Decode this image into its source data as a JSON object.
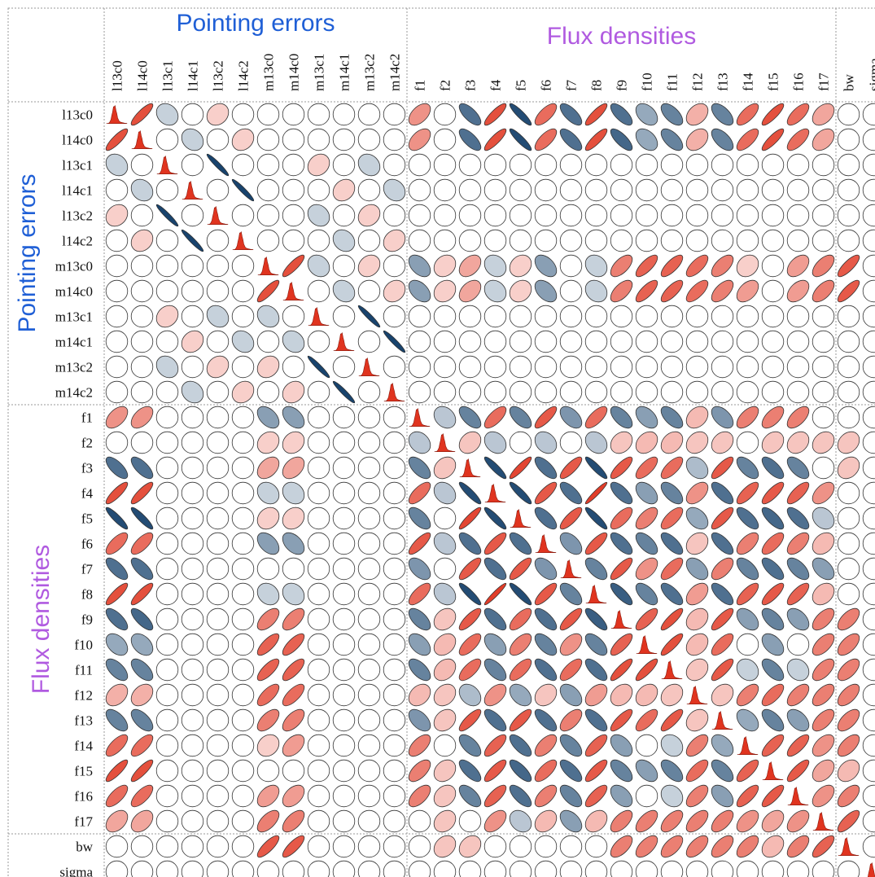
{
  "chart_data": {
    "type": "correlation-ellipse-matrix",
    "groups": [
      {
        "name": "Pointing errors",
        "color": "#1f5fd6",
        "start": 0,
        "count": 12
      },
      {
        "name": "Flux densities",
        "color": "#b05ae0",
        "start": 12,
        "count": 17
      },
      {
        "name": "",
        "color": "#000000",
        "start": 29,
        "count": 2
      }
    ],
    "variables": [
      "l13c0",
      "l14c0",
      "l13c1",
      "l14c1",
      "l13c2",
      "l14c2",
      "m13c0",
      "m14c0",
      "m13c1",
      "m14c1",
      "m13c2",
      "m14c2",
      "f1",
      "f2",
      "f3",
      "f4",
      "f5",
      "f6",
      "f7",
      "f8",
      "f9",
      "f10",
      "f11",
      "f12",
      "f13",
      "f14",
      "f15",
      "f16",
      "f17",
      "bw",
      "sigma"
    ],
    "color_scale": {
      "negative": "#0d3a66",
      "zero": "#ffffff",
      "positive": "#e0341f"
    },
    "diagonal": "marginal histogram",
    "nonzero_correlations": [
      {
        "i": "l13c0",
        "j": "l14c0",
        "r": 0.85
      },
      {
        "i": "l13c0",
        "j": "l13c1",
        "r": -0.2
      },
      {
        "i": "l13c0",
        "j": "l13c2",
        "r": 0.2
      },
      {
        "i": "l14c0",
        "j": "l14c1",
        "r": -0.2
      },
      {
        "i": "l14c0",
        "j": "l14c2",
        "r": 0.2
      },
      {
        "i": "l13c1",
        "j": "l13c2",
        "r": -0.95
      },
      {
        "i": "l13c1",
        "j": "m13c1",
        "r": 0.2
      },
      {
        "i": "l13c1",
        "j": "m13c2",
        "r": -0.2
      },
      {
        "i": "l14c1",
        "j": "l14c2",
        "r": -0.95
      },
      {
        "i": "l14c1",
        "j": "m14c1",
        "r": 0.2
      },
      {
        "i": "l14c1",
        "j": "m14c2",
        "r": -0.2
      },
      {
        "i": "l13c2",
        "j": "m13c1",
        "r": -0.2
      },
      {
        "i": "l13c2",
        "j": "m13c2",
        "r": 0.2
      },
      {
        "i": "l14c2",
        "j": "m14c1",
        "r": -0.2
      },
      {
        "i": "l14c2",
        "j": "m14c2",
        "r": 0.2
      },
      {
        "i": "m13c0",
        "j": "m14c0",
        "r": 0.85
      },
      {
        "i": "m13c0",
        "j": "m13c1",
        "r": -0.2
      },
      {
        "i": "m13c0",
        "j": "m13c2",
        "r": 0.2
      },
      {
        "i": "m14c0",
        "j": "m14c1",
        "r": -0.2
      },
      {
        "i": "m14c0",
        "j": "m14c2",
        "r": 0.2
      },
      {
        "i": "m13c1",
        "j": "m13c2",
        "r": -0.95
      },
      {
        "i": "m14c1",
        "j": "m14c2",
        "r": -0.95
      },
      {
        "i": "l13c0",
        "j": "f1",
        "r": 0.5
      },
      {
        "i": "l14c0",
        "j": "f1",
        "r": 0.5
      },
      {
        "i": "l13c0",
        "j": "f3",
        "r": -0.7
      },
      {
        "i": "l14c0",
        "j": "f3",
        "r": -0.7
      },
      {
        "i": "l13c0",
        "j": "f4",
        "r": 0.85
      },
      {
        "i": "l14c0",
        "j": "f4",
        "r": 0.85
      },
      {
        "i": "l13c0",
        "j": "f5",
        "r": -0.9
      },
      {
        "i": "l14c0",
        "j": "f5",
        "r": -0.9
      },
      {
        "i": "l13c0",
        "j": "f6",
        "r": 0.7
      },
      {
        "i": "l14c0",
        "j": "f6",
        "r": 0.7
      },
      {
        "i": "l13c0",
        "j": "f7",
        "r": -0.7
      },
      {
        "i": "l14c0",
        "j": "f7",
        "r": -0.7
      },
      {
        "i": "l13c0",
        "j": "f8",
        "r": 0.85
      },
      {
        "i": "l14c0",
        "j": "f8",
        "r": 0.85
      },
      {
        "i": "l13c0",
        "j": "f9",
        "r": -0.7
      },
      {
        "i": "l14c0",
        "j": "f9",
        "r": -0.75
      },
      {
        "i": "l13c0",
        "j": "f10",
        "r": -0.4
      },
      {
        "i": "l14c0",
        "j": "f10",
        "r": -0.4
      },
      {
        "i": "l13c0",
        "j": "f11",
        "r": -0.6
      },
      {
        "i": "l14c0",
        "j": "f11",
        "r": -0.6
      },
      {
        "i": "l13c0",
        "j": "f12",
        "r": 0.35
      },
      {
        "i": "l14c0",
        "j": "f12",
        "r": 0.35
      },
      {
        "i": "l13c0",
        "j": "f13",
        "r": -0.6
      },
      {
        "i": "l14c0",
        "j": "f13",
        "r": -0.6
      },
      {
        "i": "l13c0",
        "j": "f14",
        "r": 0.7
      },
      {
        "i": "l14c0",
        "j": "f14",
        "r": 0.7
      },
      {
        "i": "l13c0",
        "j": "f15",
        "r": 0.85
      },
      {
        "i": "l14c0",
        "j": "f15",
        "r": 0.85
      },
      {
        "i": "l13c0",
        "j": "f16",
        "r": 0.7
      },
      {
        "i": "l14c0",
        "j": "f16",
        "r": 0.7
      },
      {
        "i": "l13c0",
        "j": "f17",
        "r": 0.4
      },
      {
        "i": "l14c0",
        "j": "f17",
        "r": 0.4
      },
      {
        "i": "m13c0",
        "j": "f1",
        "r": -0.45
      },
      {
        "i": "m14c0",
        "j": "f1",
        "r": -0.45
      },
      {
        "i": "m13c0",
        "j": "f2",
        "r": 0.2
      },
      {
        "i": "m14c0",
        "j": "f2",
        "r": 0.2
      },
      {
        "i": "m13c0",
        "j": "f3",
        "r": 0.4
      },
      {
        "i": "m14c0",
        "j": "f3",
        "r": 0.4
      },
      {
        "i": "m13c0",
        "j": "f4",
        "r": -0.2
      },
      {
        "i": "m14c0",
        "j": "f4",
        "r": -0.2
      },
      {
        "i": "m13c0",
        "j": "f5",
        "r": 0.2
      },
      {
        "i": "m14c0",
        "j": "f5",
        "r": 0.2
      },
      {
        "i": "m13c0",
        "j": "f6",
        "r": -0.45
      },
      {
        "i": "m14c0",
        "j": "f6",
        "r": -0.45
      },
      {
        "i": "m13c0",
        "j": "f8",
        "r": -0.2
      },
      {
        "i": "m14c0",
        "j": "f8",
        "r": -0.2
      },
      {
        "i": "m13c0",
        "j": "f9",
        "r": 0.6
      },
      {
        "i": "m14c0",
        "j": "f9",
        "r": 0.6
      },
      {
        "i": "m13c0",
        "j": "f10",
        "r": 0.75
      },
      {
        "i": "m14c0",
        "j": "f10",
        "r": 0.75
      },
      {
        "i": "m13c0",
        "j": "f11",
        "r": 0.75
      },
      {
        "i": "m14c0",
        "j": "f11",
        "r": 0.75
      },
      {
        "i": "m13c0",
        "j": "f12",
        "r": 0.7
      },
      {
        "i": "m14c0",
        "j": "f12",
        "r": 0.7
      },
      {
        "i": "m13c0",
        "j": "f13",
        "r": 0.6
      },
      {
        "i": "m14c0",
        "j": "f13",
        "r": 0.6
      },
      {
        "i": "m13c0",
        "j": "f14",
        "r": 0.2
      },
      {
        "i": "m14c0",
        "j": "f14",
        "r": 0.45
      },
      {
        "i": "m13c0",
        "j": "f16",
        "r": 0.45
      },
      {
        "i": "m14c0",
        "j": "f16",
        "r": 0.45
      },
      {
        "i": "m13c0",
        "j": "f17",
        "r": 0.6
      },
      {
        "i": "m14c0",
        "j": "f17",
        "r": 0.6
      },
      {
        "i": "m13c0",
        "j": "bw",
        "r": 0.8
      },
      {
        "i": "m14c0",
        "j": "bw",
        "r": 0.8
      },
      {
        "i": "f1",
        "j": "f2",
        "r": -0.25
      },
      {
        "i": "f1",
        "j": "f3",
        "r": -0.6
      },
      {
        "i": "f1",
        "j": "f4",
        "r": 0.7
      },
      {
        "i": "f1",
        "j": "f5",
        "r": -0.6
      },
      {
        "i": "f1",
        "j": "f6",
        "r": 0.8
      },
      {
        "i": "f1",
        "j": "f7",
        "r": -0.5
      },
      {
        "i": "f1",
        "j": "f8",
        "r": 0.7
      },
      {
        "i": "f1",
        "j": "f9",
        "r": -0.6
      },
      {
        "i": "f1",
        "j": "f10",
        "r": -0.45
      },
      {
        "i": "f1",
        "j": "f11",
        "r": -0.6
      },
      {
        "i": "f1",
        "j": "f12",
        "r": 0.3
      },
      {
        "i": "f1",
        "j": "f13",
        "r": -0.5
      },
      {
        "i": "f1",
        "j": "f14",
        "r": 0.6
      },
      {
        "i": "f1",
        "j": "f15",
        "r": 0.6
      },
      {
        "i": "f1",
        "j": "f16",
        "r": 0.6
      },
      {
        "i": "f2",
        "j": "f3",
        "r": 0.25
      },
      {
        "i": "f2",
        "j": "f4",
        "r": -0.25
      },
      {
        "i": "f2",
        "j": "f6",
        "r": -0.25
      },
      {
        "i": "f2",
        "j": "f8",
        "r": -0.25
      },
      {
        "i": "f2",
        "j": "f9",
        "r": 0.25
      },
      {
        "i": "f2",
        "j": "f10",
        "r": 0.3
      },
      {
        "i": "f2",
        "j": "f11",
        "r": 0.3
      },
      {
        "i": "f2",
        "j": "f12",
        "r": 0.25
      },
      {
        "i": "f2",
        "j": "f13",
        "r": 0.25
      },
      {
        "i": "f2",
        "j": "f15",
        "r": 0.25
      },
      {
        "i": "f2",
        "j": "f16",
        "r": 0.25
      },
      {
        "i": "f2",
        "j": "f17",
        "r": 0.25
      },
      {
        "i": "f2",
        "j": "bw",
        "r": 0.25
      },
      {
        "i": "f3",
        "j": "f4",
        "r": -0.9
      },
      {
        "i": "f3",
        "j": "f5",
        "r": 0.9
      },
      {
        "i": "f3",
        "j": "f6",
        "r": -0.7
      },
      {
        "i": "f3",
        "j": "f7",
        "r": 0.8
      },
      {
        "i": "f3",
        "j": "f8",
        "r": -0.9
      },
      {
        "i": "f3",
        "j": "f9",
        "r": 0.8
      },
      {
        "i": "f3",
        "j": "f10",
        "r": 0.7
      },
      {
        "i": "f3",
        "j": "f11",
        "r": 0.7
      },
      {
        "i": "f3",
        "j": "f12",
        "r": -0.3
      },
      {
        "i": "f3",
        "j": "f13",
        "r": 0.8
      },
      {
        "i": "f3",
        "j": "f14",
        "r": -0.6
      },
      {
        "i": "f3",
        "j": "f15",
        "r": -0.7
      },
      {
        "i": "f3",
        "j": "f16",
        "r": -0.6
      },
      {
        "i": "f3",
        "j": "bw",
        "r": 0.25
      },
      {
        "i": "f4",
        "j": "f5",
        "r": -0.9
      },
      {
        "i": "f4",
        "j": "f6",
        "r": 0.8
      },
      {
        "i": "f4",
        "j": "f7",
        "r": -0.7
      },
      {
        "i": "f4",
        "j": "f8",
        "r": 0.95
      },
      {
        "i": "f4",
        "j": "f9",
        "r": -0.7
      },
      {
        "i": "f4",
        "j": "f10",
        "r": -0.45
      },
      {
        "i": "f4",
        "j": "f11",
        "r": -0.6
      },
      {
        "i": "f4",
        "j": "f12",
        "r": 0.5
      },
      {
        "i": "f4",
        "j": "f13",
        "r": -0.7
      },
      {
        "i": "f4",
        "j": "f14",
        "r": 0.75
      },
      {
        "i": "f4",
        "j": "f15",
        "r": 0.8
      },
      {
        "i": "f4",
        "j": "f16",
        "r": 0.75
      },
      {
        "i": "f4",
        "j": "f17",
        "r": 0.5
      },
      {
        "i": "f5",
        "j": "f6",
        "r": -0.7
      },
      {
        "i": "f5",
        "j": "f7",
        "r": 0.8
      },
      {
        "i": "f5",
        "j": "f8",
        "r": -0.9
      },
      {
        "i": "f5",
        "j": "f9",
        "r": 0.7
      },
      {
        "i": "f5",
        "j": "f10",
        "r": 0.6
      },
      {
        "i": "f5",
        "j": "f11",
        "r": 0.7
      },
      {
        "i": "f5",
        "j": "f12",
        "r": -0.4
      },
      {
        "i": "f5",
        "j": "f13",
        "r": 0.8
      },
      {
        "i": "f5",
        "j": "f14",
        "r": -0.7
      },
      {
        "i": "f5",
        "j": "f15",
        "r": -0.75
      },
      {
        "i": "f5",
        "j": "f16",
        "r": -0.7
      },
      {
        "i": "f5",
        "j": "f17",
        "r": -0.25
      },
      {
        "i": "f6",
        "j": "f7",
        "r": -0.5
      },
      {
        "i": "f6",
        "j": "f8",
        "r": 0.8
      },
      {
        "i": "f6",
        "j": "f9",
        "r": -0.7
      },
      {
        "i": "f6",
        "j": "f10",
        "r": -0.6
      },
      {
        "i": "f6",
        "j": "f11",
        "r": -0.7
      },
      {
        "i": "f6",
        "j": "f12",
        "r": 0.25
      },
      {
        "i": "f6",
        "j": "f13",
        "r": -0.7
      },
      {
        "i": "f6",
        "j": "f14",
        "r": 0.6
      },
      {
        "i": "f6",
        "j": "f15",
        "r": 0.7
      },
      {
        "i": "f6",
        "j": "f16",
        "r": 0.6
      },
      {
        "i": "f6",
        "j": "f17",
        "r": 0.3
      },
      {
        "i": "f7",
        "j": "f8",
        "r": -0.6
      },
      {
        "i": "f7",
        "j": "f9",
        "r": 0.8
      },
      {
        "i": "f7",
        "j": "f10",
        "r": 0.5
      },
      {
        "i": "f7",
        "j": "f11",
        "r": 0.7
      },
      {
        "i": "f7",
        "j": "f12",
        "r": -0.45
      },
      {
        "i": "f7",
        "j": "f13",
        "r": 0.6
      },
      {
        "i": "f7",
        "j": "f14",
        "r": -0.6
      },
      {
        "i": "f7",
        "j": "f15",
        "r": -0.7
      },
      {
        "i": "f7",
        "j": "f16",
        "r": -0.6
      },
      {
        "i": "f7",
        "j": "f17",
        "r": -0.45
      },
      {
        "i": "f8",
        "j": "f9",
        "r": -0.8
      },
      {
        "i": "f8",
        "j": "f10",
        "r": -0.6
      },
      {
        "i": "f8",
        "j": "f11",
        "r": -0.7
      },
      {
        "i": "f8",
        "j": "f12",
        "r": 0.45
      },
      {
        "i": "f8",
        "j": "f13",
        "r": -0.7
      },
      {
        "i": "f8",
        "j": "f14",
        "r": 0.75
      },
      {
        "i": "f8",
        "j": "f15",
        "r": 0.8
      },
      {
        "i": "f8",
        "j": "f16",
        "r": 0.75
      },
      {
        "i": "f8",
        "j": "f17",
        "r": 0.3
      },
      {
        "i": "f9",
        "j": "f10",
        "r": 0.75
      },
      {
        "i": "f9",
        "j": "f11",
        "r": 0.85
      },
      {
        "i": "f9",
        "j": "f12",
        "r": 0.3
      },
      {
        "i": "f9",
        "j": "f13",
        "r": 0.8
      },
      {
        "i": "f9",
        "j": "f14",
        "r": -0.45
      },
      {
        "i": "f9",
        "j": "f15",
        "r": -0.6
      },
      {
        "i": "f9",
        "j": "f16",
        "r": -0.45
      },
      {
        "i": "f9",
        "j": "f17",
        "r": 0.6
      },
      {
        "i": "f9",
        "j": "bw",
        "r": 0.6
      },
      {
        "i": "f10",
        "j": "f11",
        "r": 0.85
      },
      {
        "i": "f10",
        "j": "f12",
        "r": 0.3
      },
      {
        "i": "f10",
        "j": "f13",
        "r": 0.7
      },
      {
        "i": "f10",
        "j": "f15",
        "r": -0.45
      },
      {
        "i": "f10",
        "j": "f17",
        "r": 0.6
      },
      {
        "i": "f10",
        "j": "bw",
        "r": 0.6
      },
      {
        "i": "f11",
        "j": "f12",
        "r": 0.25
      },
      {
        "i": "f11",
        "j": "f13",
        "r": 0.8
      },
      {
        "i": "f11",
        "j": "f14",
        "r": -0.2
      },
      {
        "i": "f11",
        "j": "f15",
        "r": -0.6
      },
      {
        "i": "f11",
        "j": "f16",
        "r": -0.2
      },
      {
        "i": "f11",
        "j": "f17",
        "r": 0.6
      },
      {
        "i": "f11",
        "j": "bw",
        "r": 0.6
      },
      {
        "i": "f12",
        "j": "f13",
        "r": 0.25
      },
      {
        "i": "f12",
        "j": "f14",
        "r": 0.6
      },
      {
        "i": "f12",
        "j": "f15",
        "r": 0.7
      },
      {
        "i": "f12",
        "j": "f16",
        "r": 0.6
      },
      {
        "i": "f12",
        "j": "f17",
        "r": 0.6
      },
      {
        "i": "f12",
        "j": "bw",
        "r": 0.6
      },
      {
        "i": "f13",
        "j": "f14",
        "r": -0.4
      },
      {
        "i": "f13",
        "j": "f15",
        "r": -0.6
      },
      {
        "i": "f13",
        "j": "f16",
        "r": -0.45
      },
      {
        "i": "f13",
        "j": "f17",
        "r": 0.6
      },
      {
        "i": "f13",
        "j": "bw",
        "r": 0.6
      },
      {
        "i": "f14",
        "j": "f15",
        "r": 0.75
      },
      {
        "i": "f14",
        "j": "f16",
        "r": 0.75
      },
      {
        "i": "f14",
        "j": "f17",
        "r": 0.5
      },
      {
        "i": "f14",
        "j": "bw",
        "r": 0.6
      },
      {
        "i": "f15",
        "j": "f16",
        "r": 0.8
      },
      {
        "i": "f15",
        "j": "f17",
        "r": 0.4
      },
      {
        "i": "f15",
        "j": "bw",
        "r": 0.3
      },
      {
        "i": "f16",
        "j": "f17",
        "r": 0.5
      },
      {
        "i": "f16",
        "j": "bw",
        "r": 0.6
      },
      {
        "i": "f17",
        "j": "bw",
        "r": 0.75
      }
    ]
  }
}
